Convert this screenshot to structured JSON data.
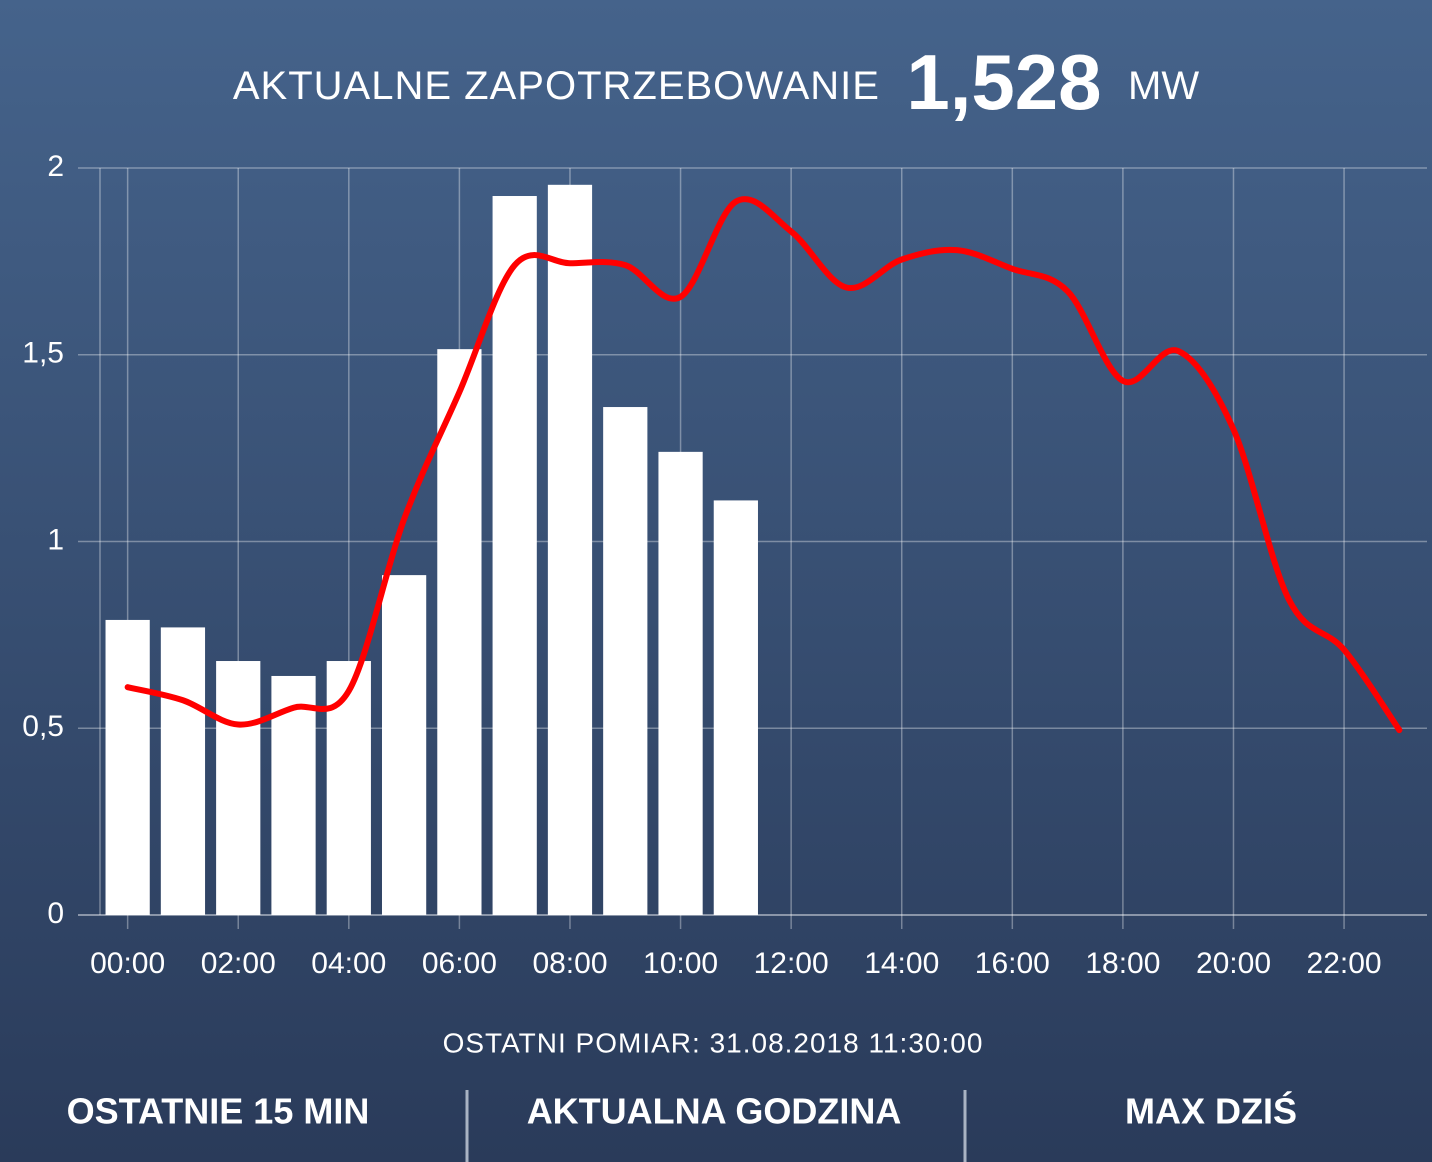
{
  "header": {
    "title": "AKTUALNE ZAPOTRZEBOWANIE",
    "value": "1,528",
    "unit": "MW"
  },
  "chart_data": {
    "type": "bar_line",
    "categories": [
      "00:00",
      null,
      "02:00",
      null,
      "04:00",
      null,
      "06:00",
      null,
      "08:00",
      null,
      "10:00",
      null,
      "12:00",
      null,
      "14:00",
      null,
      "16:00",
      null,
      "18:00",
      null,
      "20:00",
      null,
      "22:00",
      null
    ],
    "series": [
      {
        "kind": "bar",
        "color": "#ffffff",
        "values": [
          0.79,
          0.77,
          0.68,
          0.64,
          0.68,
          0.91,
          1.515,
          1.925,
          1.955,
          1.36,
          1.24,
          1.11,
          null,
          null,
          null,
          null,
          null,
          null,
          null,
          null,
          null,
          null,
          null,
          null
        ]
      },
      {
        "kind": "line",
        "color": "#ff0000",
        "values": [
          0.61,
          0.575,
          0.51,
          0.555,
          0.6,
          1.06,
          1.4,
          1.74,
          1.745,
          1.74,
          1.655,
          1.91,
          1.83,
          1.68,
          1.755,
          1.78,
          1.73,
          1.67,
          1.43,
          1.51,
          1.3,
          0.845,
          0.71,
          0.495
        ]
      }
    ],
    "ylim": [
      0,
      2
    ],
    "yticks": [
      0,
      {
        "value": 0.5,
        "label": "0,5"
      },
      1,
      {
        "value": 1.5,
        "label": "1,5"
      },
      2
    ],
    "grid": true
  },
  "footer": {
    "last_measurement": "OSTATNI POMIAR: 31.08.2018 11:30:00",
    "buttons": [
      "OSTATNIE 15 MIN",
      "AKTUALNA GODZINA",
      "MAX DZIŚ"
    ]
  }
}
